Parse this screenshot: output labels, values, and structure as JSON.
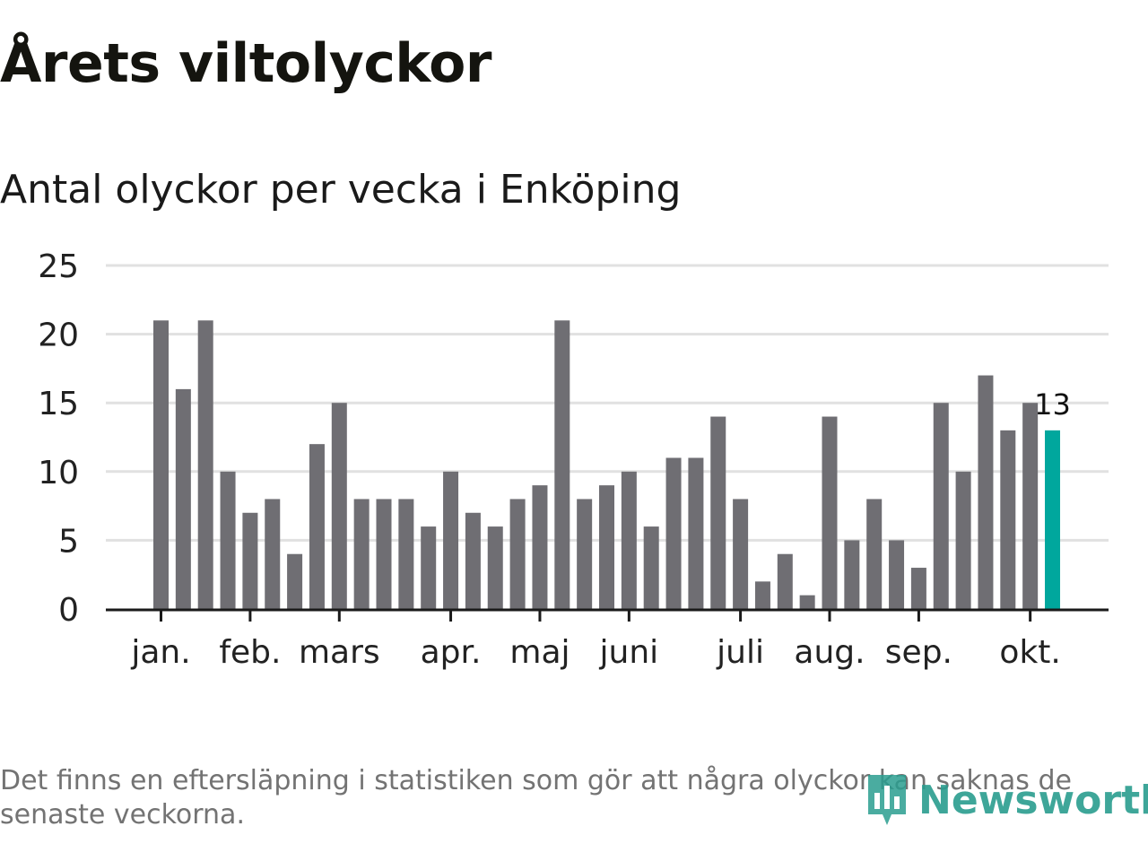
{
  "title": "Årets viltolyckor",
  "subtitle": "Antal olyckor per vecka i Enköping",
  "footnote": "Det finns en eftersläpning i statistiken som gör att några olyckor kan saknas de senaste veckorna.",
  "brand": {
    "name": "Newsworthy",
    "icon": "newsworthy-logo-icon"
  },
  "colors": {
    "bar": "#6f6e73",
    "highlight": "#00a79d",
    "grid": "#e1e1e1",
    "axis": "#1a1a1a",
    "brand": "#2a9d8f"
  },
  "chart_data": {
    "type": "bar",
    "title": "Antal olyckor per vecka i Enköping",
    "xlabel": "",
    "ylabel": "",
    "ylim": [
      0,
      25
    ],
    "yticks": [
      0,
      5,
      10,
      15,
      20,
      25
    ],
    "grid": true,
    "values": [
      21,
      16,
      21,
      10,
      7,
      8,
      4,
      12,
      15,
      8,
      8,
      8,
      6,
      10,
      7,
      6,
      8,
      9,
      21,
      8,
      9,
      10,
      6,
      11,
      11,
      14,
      8,
      2,
      4,
      1,
      14,
      5,
      8,
      5,
      3,
      15,
      10,
      17,
      13,
      15,
      13
    ],
    "highlight_index": 40,
    "highlight_label": "13",
    "month_labels": [
      {
        "label": "jan.",
        "index": 0
      },
      {
        "label": "feb.",
        "index": 4
      },
      {
        "label": "mars",
        "index": 8
      },
      {
        "label": "apr.",
        "index": 13
      },
      {
        "label": "maj",
        "index": 17
      },
      {
        "label": "juni",
        "index": 21
      },
      {
        "label": "juli",
        "index": 26
      },
      {
        "label": "aug.",
        "index": 30
      },
      {
        "label": "sep.",
        "index": 34
      },
      {
        "label": "okt.",
        "index": 39
      }
    ]
  }
}
